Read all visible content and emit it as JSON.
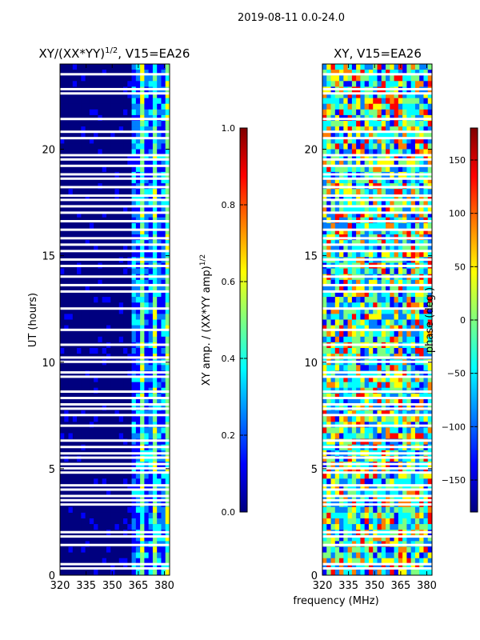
{
  "figure": {
    "suptitle": "2019-08-11 0.0-24.0",
    "shared_xlabel": "frequency (MHz)"
  },
  "colors": {
    "jet": [
      "#00007f",
      "#0000ff",
      "#007fff",
      "#00ffff",
      "#7fff7f",
      "#ffff00",
      "#ff7f00",
      "#ff0000",
      "#7f0000"
    ],
    "flag_gap": "#ffffff",
    "axis": "#000000"
  },
  "chart_data": [
    {
      "type": "heatmap",
      "title_main": "XY/(XX*YY)",
      "title_sup": "1/2",
      "title_rest": ", V15=EA26",
      "ylabel": "UT (hours)",
      "xlim": [
        320,
        383
      ],
      "ylim": [
        0,
        24
      ],
      "xticks": [
        320,
        335,
        350,
        365,
        380
      ],
      "yticks": [
        0,
        5,
        10,
        15,
        20
      ],
      "signal_band_mhz": [
        360,
        383
      ],
      "colorbar": {
        "label_main": "XY amp. / (XX*YY amp)",
        "label_sup": "1/2",
        "range": [
          0.0,
          1.0
        ],
        "ticks": [
          "0.0",
          "0.2",
          "0.4",
          "0.6",
          "0.8",
          "1.0"
        ]
      }
    },
    {
      "type": "heatmap",
      "title_main": "XY, V15=EA26",
      "xlim": [
        320,
        383
      ],
      "ylim": [
        0,
        24
      ],
      "xticks": [
        320,
        335,
        350,
        365,
        380
      ],
      "yticks": [
        0,
        5,
        10,
        15,
        20
      ],
      "colorbar": {
        "label_main": "phase (deg.)",
        "range": [
          -180,
          180
        ],
        "ticks": [
          "−150",
          "−100",
          "−50",
          "0",
          "50",
          "100",
          "150"
        ]
      }
    }
  ],
  "flagged_ut_hours": [
    0.3,
    0.5,
    1.4,
    1.8,
    2.0,
    3.3,
    3.5,
    3.7,
    4.0,
    4.2,
    4.8,
    5.0,
    5.2,
    5.5,
    5.7,
    6.0,
    6.3,
    7.0,
    7.5,
    7.8,
    8.0,
    8.3,
    8.6,
    9.3,
    9.5,
    10.0,
    10.2,
    10.8,
    11.5,
    12.5,
    13.3,
    13.6,
    14.0,
    14.5,
    14.8,
    15.2,
    15.5,
    15.8,
    16.2,
    16.6,
    17.0,
    17.3,
    17.6,
    17.8,
    18.2,
    18.6,
    18.8,
    19.2,
    19.5,
    19.7,
    20.5,
    20.8,
    21.4,
    22.6,
    22.8,
    23.5
  ]
}
